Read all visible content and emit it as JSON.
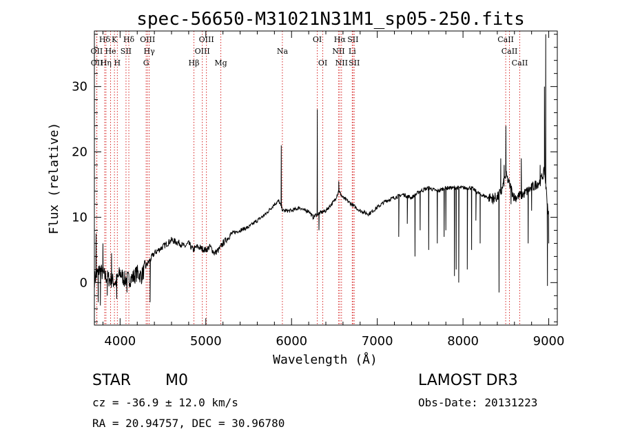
{
  "chart_data": {
    "type": "line",
    "title": "spec-56650-M31021N31M1_sp05-250.fits",
    "xlabel": "Wavelength (Å)",
    "ylabel": "Flux (relative)",
    "xlim": [
      3700,
      9100
    ],
    "ylim": [
      -6.5,
      38.5
    ],
    "xticks": [
      4000,
      5000,
      6000,
      7000,
      8000,
      9000
    ],
    "yticks": [
      0,
      10,
      20,
      30
    ],
    "grid": false,
    "spectrum_anchors": [
      [
        3700,
        0.5
      ],
      [
        3760,
        2
      ],
      [
        3820,
        1
      ],
      [
        3880,
        0.5
      ],
      [
        3950,
        0
      ],
      [
        4000,
        1.5
      ],
      [
        4050,
        0.5
      ],
      [
        4100,
        0.5
      ],
      [
        4150,
        0.8
      ],
      [
        4200,
        1.5
      ],
      [
        4250,
        1
      ],
      [
        4300,
        2.5
      ],
      [
        4400,
        4.5
      ],
      [
        4500,
        5.5
      ],
      [
        4600,
        6.5
      ],
      [
        4700,
        6
      ],
      [
        4750,
        5.5
      ],
      [
        4800,
        6
      ],
      [
        4850,
        5
      ],
      [
        4900,
        5.5
      ],
      [
        4950,
        5.2
      ],
      [
        5000,
        5
      ],
      [
        5050,
        5.5
      ],
      [
        5100,
        4.5
      ],
      [
        5150,
        5
      ],
      [
        5200,
        6
      ],
      [
        5300,
        7.5
      ],
      [
        5400,
        8
      ],
      [
        5500,
        8.5
      ],
      [
        5600,
        9.5
      ],
      [
        5700,
        10.5
      ],
      [
        5800,
        12
      ],
      [
        5850,
        12.5
      ],
      [
        5900,
        11
      ],
      [
        6000,
        11
      ],
      [
        6100,
        11.5
      ],
      [
        6150,
        11
      ],
      [
        6200,
        11
      ],
      [
        6250,
        10
      ],
      [
        6300,
        10.5
      ],
      [
        6400,
        11
      ],
      [
        6500,
        12.5
      ],
      [
        6550,
        14
      ],
      [
        6600,
        13
      ],
      [
        6700,
        12
      ],
      [
        6800,
        11
      ],
      [
        6900,
        10.5
      ],
      [
        7000,
        11.5
      ],
      [
        7100,
        12.5
      ],
      [
        7200,
        13
      ],
      [
        7300,
        13.5
      ],
      [
        7400,
        13
      ],
      [
        7500,
        14
      ],
      [
        7600,
        14.5
      ],
      [
        7700,
        14
      ],
      [
        7800,
        14.5
      ],
      [
        7900,
        14.5
      ],
      [
        8000,
        14.5
      ],
      [
        8100,
        14.5
      ],
      [
        8150,
        14
      ],
      [
        8200,
        13.5
      ],
      [
        8300,
        13
      ],
      [
        8400,
        13
      ],
      [
        8450,
        14
      ],
      [
        8500,
        16.5
      ],
      [
        8600,
        13
      ],
      [
        8700,
        13.5
      ],
      [
        8800,
        14.5
      ],
      [
        8900,
        15.5
      ],
      [
        8950,
        17
      ],
      [
        9000,
        10
      ]
    ],
    "spectrum_spikes": [
      [
        3720,
        7.5
      ],
      [
        3745,
        -3
      ],
      [
        3770,
        -3.5
      ],
      [
        3800,
        6
      ],
      [
        3850,
        -2
      ],
      [
        3900,
        4.5
      ],
      [
        3960,
        -2.5
      ],
      [
        4080,
        -1.5
      ],
      [
        4350,
        -3
      ],
      [
        5880,
        21
      ],
      [
        6300,
        26.5
      ],
      [
        6320,
        8
      ],
      [
        6550,
        15.5
      ],
      [
        7250,
        7
      ],
      [
        7350,
        9
      ],
      [
        7440,
        4
      ],
      [
        7500,
        8
      ],
      [
        7600,
        5
      ],
      [
        7700,
        6
      ],
      [
        7780,
        7
      ],
      [
        7800,
        8
      ],
      [
        7900,
        1
      ],
      [
        7920,
        2
      ],
      [
        7950,
        0
      ],
      [
        8050,
        2
      ],
      [
        8100,
        5
      ],
      [
        8150,
        9.5
      ],
      [
        8200,
        6
      ],
      [
        8350,
        12
      ],
      [
        8420,
        -1.5
      ],
      [
        8440,
        19
      ],
      [
        8480,
        18
      ],
      [
        8500,
        24
      ],
      [
        8560,
        12
      ],
      [
        8680,
        19
      ],
      [
        8760,
        6
      ],
      [
        8800,
        11
      ],
      [
        8900,
        18
      ],
      [
        8950,
        30
      ],
      [
        8965,
        38
      ],
      [
        8985,
        -0.5
      ],
      [
        9000,
        6
      ]
    ],
    "lines": [
      {
        "name": "Hδ",
        "wave": 3820,
        "row": 1
      },
      {
        "name": "OII",
        "wave": 3727,
        "row": 2
      },
      {
        "name": "OII",
        "wave": 3729,
        "row": 3
      },
      {
        "name": "He",
        "wave": 3889,
        "row": 2
      },
      {
        "name": "Hη",
        "wave": 3835,
        "row": 3
      },
      {
        "name": "K",
        "wave": 3934,
        "row": 1
      },
      {
        "name": "H",
        "wave": 3968,
        "row": 3
      },
      {
        "name": "SII",
        "wave": 4069,
        "row": 2
      },
      {
        "name": "Hδ",
        "wave": 4102,
        "row": 1
      },
      {
        "name": "OIII",
        "wave": 4320,
        "row": 1
      },
      {
        "name": "Hγ",
        "wave": 4340,
        "row": 2
      },
      {
        "name": "G",
        "wave": 4304,
        "row": 3
      },
      {
        "name": "Hβ",
        "wave": 4861,
        "row": 3
      },
      {
        "name": "OIII",
        "wave": 4959,
        "row": 2
      },
      {
        "name": "OIII",
        "wave": 5007,
        "row": 1
      },
      {
        "name": "Mg",
        "wave": 5175,
        "row": 3
      },
      {
        "name": "Na",
        "wave": 5893,
        "row": 2
      },
      {
        "name": "OI",
        "wave": 6300,
        "row": 1
      },
      {
        "name": "OI",
        "wave": 6364,
        "row": 3
      },
      {
        "name": "Hα",
        "wave": 6563,
        "row": 1
      },
      {
        "name": "NII",
        "wave": 6548,
        "row": 2
      },
      {
        "name": "NII",
        "wave": 6583,
        "row": 3
      },
      {
        "name": "SII",
        "wave": 6716,
        "row": 1
      },
      {
        "name": "Li",
        "wave": 6708,
        "row": 2
      },
      {
        "name": "SII",
        "wave": 6731,
        "row": 3
      },
      {
        "name": "CaII",
        "wave": 8498,
        "row": 1
      },
      {
        "name": "CaII",
        "wave": 8542,
        "row": 2
      },
      {
        "name": "CaII",
        "wave": 8662,
        "row": 3
      }
    ],
    "line_color": "#000000",
    "marker_color": "#d62020"
  },
  "info": {
    "class": "STAR",
    "subclass": "M0",
    "survey": "LAMOST DR3",
    "cz": "cz = -36.9 ± 12.0 km/s",
    "obs_date": "Obs-Date: 20131223",
    "coords": "RA =  20.94757, DEC =  30.96780"
  }
}
